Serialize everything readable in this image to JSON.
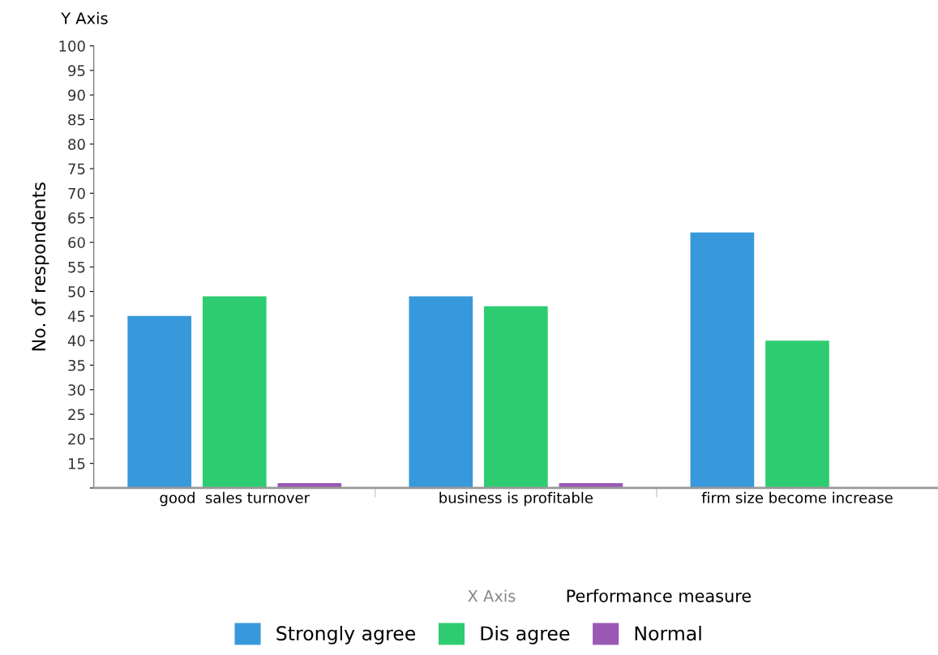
{
  "chart_data": {
    "type": "bar",
    "xlabel": "Performance measure",
    "ylabel": "No. of respondents",
    "annotations": [
      "Y Axis",
      "X Axis"
    ],
    "categories": [
      "good  sales turnover",
      "business is profitable",
      "firm size become increase"
    ],
    "series": [
      {
        "name": "Strongly agree",
        "color": "#3799db",
        "values": [
          45,
          49,
          62
        ]
      },
      {
        "name": "Dis agree",
        "color": "#2ecc71",
        "values": [
          49,
          47,
          40
        ]
      },
      {
        "name": "Normal",
        "color": "#9b59b6",
        "values": [
          11,
          11,
          null
        ]
      }
    ],
    "ylim": [
      10,
      100
    ],
    "yticks": [
      {
        "value": 10,
        "label": null
      },
      15,
      20,
      25,
      30,
      35,
      40,
      45,
      50,
      55,
      60,
      65,
      70,
      75,
      80,
      85,
      90,
      95,
      100
    ],
    "grid": false,
    "legend": "bottom"
  }
}
